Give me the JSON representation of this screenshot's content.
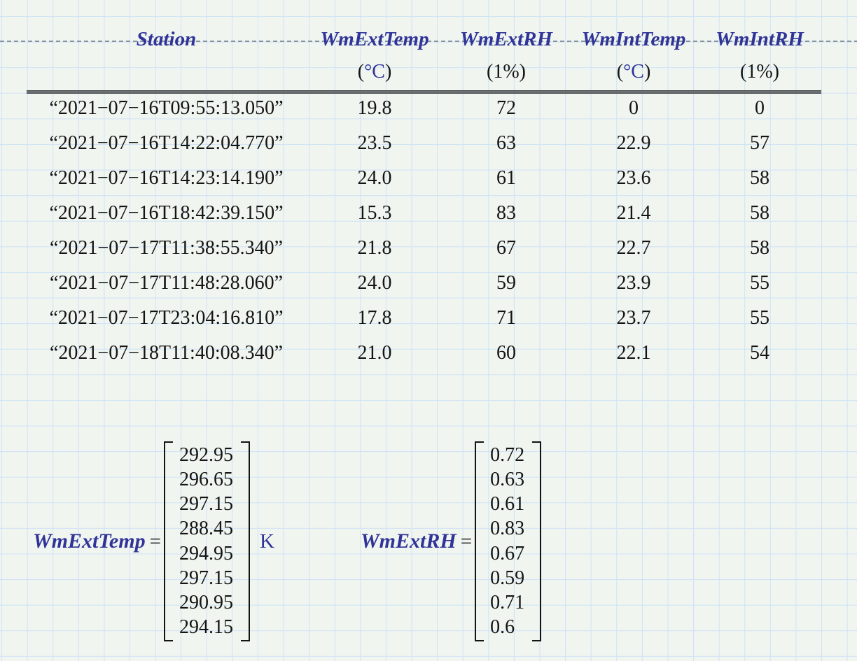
{
  "colors": {
    "accent_blue": "#303498",
    "text_black": "#141414",
    "background": "#f0f5f0",
    "grid_line": "#cfe2f6",
    "dashed_line": "#8794a0",
    "separator": "#4a4f52"
  },
  "table": {
    "headers": [
      "Station",
      "WmExtTemp",
      "WmExtRH",
      "WmIntTemp",
      "WmIntRH"
    ],
    "units": [
      {
        "open": "",
        "text": "",
        "close": "",
        "blue": false
      },
      {
        "open": "(",
        "text": "°C",
        "close": ")",
        "blue": true
      },
      {
        "open": "(",
        "text": "1%",
        "close": ")",
        "blue": false
      },
      {
        "open": "(",
        "text": "°C",
        "close": ")",
        "blue": true
      },
      {
        "open": "(",
        "text": "1%",
        "close": ")",
        "blue": false
      }
    ],
    "rows": [
      [
        "“2021−07−16T09:55:13.050”",
        "19.8",
        "72",
        "0",
        "0"
      ],
      [
        "“2021−07−16T14:22:04.770”",
        "23.5",
        "63",
        "22.9",
        "57"
      ],
      [
        "“2021−07−16T14:23:14.190”",
        "24.0",
        "61",
        "23.6",
        "58"
      ],
      [
        "“2021−07−16T18:42:39.150”",
        "15.3",
        "83",
        "21.4",
        "58"
      ],
      [
        "“2021−07−17T11:38:55.340”",
        "21.8",
        "67",
        "22.7",
        "58"
      ],
      [
        "“2021−07−17T11:48:28.060”",
        "24.0",
        "59",
        "23.9",
        "55"
      ],
      [
        "“2021−07−17T23:04:16.810”",
        "17.8",
        "71",
        "23.7",
        "55"
      ],
      [
        "“2021−07−18T11:40:08.340”",
        "21.0",
        "60",
        "22.1",
        "54"
      ]
    ]
  },
  "equations": [
    {
      "name": "WmExtTemp",
      "operator": "=",
      "values": [
        "292.95",
        "296.65",
        "297.15",
        "288.45",
        "294.95",
        "297.15",
        "290.95",
        "294.15"
      ],
      "unit": "K"
    },
    {
      "name": "WmExtRH",
      "operator": "=",
      "values": [
        "0.72",
        "0.63",
        "0.61",
        "0.83",
        "0.67",
        "0.59",
        "0.71",
        "0.6"
      ],
      "unit": ""
    }
  ]
}
